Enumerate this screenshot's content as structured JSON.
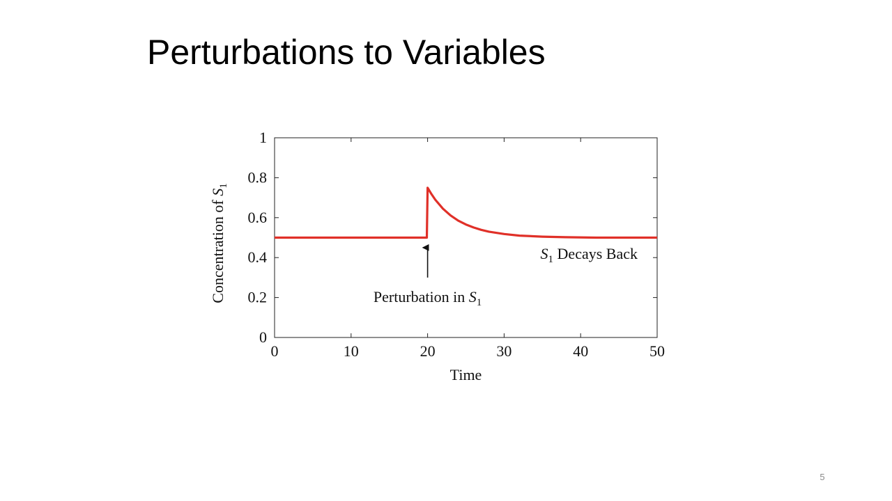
{
  "slide": {
    "title": "Perturbations to Variables",
    "page_number": "5"
  },
  "chart_data": {
    "type": "line",
    "title": "",
    "xlabel": "Time",
    "ylabel_text": "Concentration of ",
    "ylabel_var": "S",
    "ylabel_sub": "1",
    "xlim": [
      0,
      50
    ],
    "ylim": [
      0,
      1
    ],
    "xticks": [
      "0",
      "10",
      "20",
      "30",
      "40",
      "50"
    ],
    "yticks": [
      "0",
      "0.2",
      "0.4",
      "0.6",
      "0.8",
      "1"
    ],
    "grid": false,
    "color": "#e03028",
    "series": [
      {
        "x": [
          0,
          19.9,
          20,
          20.5,
          21,
          22,
          23,
          24,
          25,
          26,
          27,
          28,
          30,
          32,
          35,
          38,
          42,
          46,
          50
        ],
        "values": [
          0.5,
          0.5,
          0.75,
          0.718,
          0.69,
          0.645,
          0.611,
          0.585,
          0.566,
          0.551,
          0.539,
          0.53,
          0.518,
          0.51,
          0.505,
          0.502,
          0.5,
          0.5,
          0.5
        ]
      }
    ],
    "annotations": {
      "perturbation": {
        "text": "Perturbation in ",
        "var": "S",
        "sub": "1",
        "arrow_x": 20,
        "arrow_y_from": 0.3,
        "arrow_y_to": 0.45
      },
      "decay": {
        "var": "S",
        "sub": "1",
        "text": " Decays Back"
      }
    }
  }
}
